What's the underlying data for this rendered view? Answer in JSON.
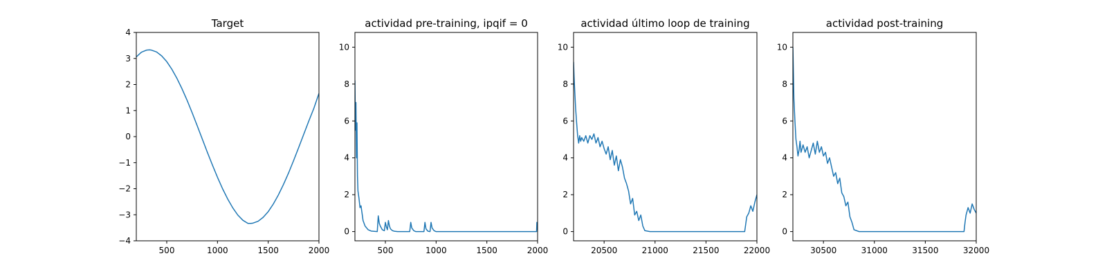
{
  "colors": {
    "line": "#1f77b4"
  },
  "chart_data": [
    {
      "type": "line",
      "title": "Target",
      "xlim": [
        200,
        2000
      ],
      "ylim": [
        -4,
        4
      ],
      "xticks": [
        500,
        1000,
        1500,
        2000
      ],
      "yticks": [
        -4,
        -3,
        -2,
        -1,
        0,
        1,
        2,
        3,
        4
      ],
      "xtick_labels": [
        "500",
        "1000",
        "1500",
        "2000"
      ],
      "ytick_labels": [
        "−4",
        "−3",
        "−2",
        "−1",
        "0",
        "1",
        "2",
        "3",
        "4"
      ],
      "series": [
        {
          "x": [
            200,
            250,
            300,
            330,
            350,
            400,
            450,
            500,
            550,
            600,
            650,
            700,
            750,
            800,
            850,
            900,
            950,
            1000,
            1050,
            1100,
            1150,
            1200,
            1250,
            1300,
            1330,
            1350,
            1400,
            1450,
            1500,
            1550,
            1600,
            1650,
            1700,
            1750,
            1800,
            1850,
            1900,
            1950,
            2000
          ],
          "y": [
            3.06,
            3.24,
            3.32,
            3.33,
            3.32,
            3.25,
            3.1,
            2.88,
            2.59,
            2.24,
            1.84,
            1.4,
            0.92,
            0.42,
            -0.09,
            -0.6,
            -1.09,
            -1.56,
            -2.0,
            -2.39,
            -2.73,
            -3.01,
            -3.21,
            -3.33,
            -3.33,
            -3.32,
            -3.25,
            -3.1,
            -2.88,
            -2.59,
            -2.24,
            -1.84,
            -1.4,
            -0.92,
            -0.42,
            0.09,
            0.6,
            1.09,
            1.66
          ]
        }
      ]
    },
    {
      "type": "line",
      "title": "actividad pre-training, ipqif = 0",
      "xlim": [
        200,
        2000
      ],
      "ylim": [
        -0.5,
        10.8
      ],
      "xticks": [
        500,
        1000,
        1500,
        2000
      ],
      "yticks": [
        0,
        2,
        4,
        6,
        8,
        10
      ],
      "xtick_labels": [
        "500",
        "1000",
        "1500",
        "2000"
      ],
      "ytick_labels": [
        "0",
        "2",
        "4",
        "6",
        "8",
        "10"
      ],
      "series": [
        {
          "x": [
            200,
            205,
            210,
            215,
            220,
            225,
            230,
            240,
            250,
            260,
            280,
            300,
            330,
            360,
            420,
            430,
            440,
            450,
            470,
            490,
            500,
            510,
            520,
            530,
            540,
            550,
            570,
            590,
            620,
            680,
            740,
            750,
            760,
            780,
            800,
            830,
            880,
            890,
            900,
            920,
            940,
            950,
            960,
            980,
            1000,
            1050,
            1500,
            1990,
            1993,
            1996,
            2000
          ],
          "y": [
            8.2,
            5.5,
            7.0,
            4.0,
            5.9,
            3.0,
            2.2,
            1.8,
            1.3,
            1.4,
            0.6,
            0.3,
            0.1,
            0.03,
            0.0,
            0.85,
            0.45,
            0.3,
            0.1,
            0.05,
            0.5,
            0.25,
            0.1,
            0.6,
            0.3,
            0.15,
            0.05,
            0.02,
            0.0,
            0.0,
            0.0,
            0.5,
            0.2,
            0.05,
            0.0,
            0.0,
            0.0,
            0.5,
            0.15,
            0.02,
            0.0,
            0.5,
            0.2,
            0.05,
            0.0,
            0.0,
            0.0,
            0.0,
            0.5,
            0.2,
            0.1
          ]
        }
      ]
    },
    {
      "type": "line",
      "title": "actividad último loop de training",
      "xlim": [
        20200,
        22000
      ],
      "ylim": [
        -0.5,
        10.8
      ],
      "xticks": [
        20500,
        21000,
        21500,
        22000
      ],
      "yticks": [
        0,
        2,
        4,
        6,
        8,
        10
      ],
      "xtick_labels": [
        "20500",
        "21000",
        "21500",
        "22000"
      ],
      "ytick_labels": [
        "0",
        "2",
        "4",
        "6",
        "8",
        "10"
      ],
      "series": [
        {
          "x": [
            20200,
            20205,
            20210,
            20220,
            20230,
            20240,
            20250,
            20260,
            20270,
            20280,
            20300,
            20320,
            20340,
            20360,
            20380,
            20400,
            20420,
            20440,
            20460,
            20480,
            20500,
            20520,
            20540,
            20560,
            20580,
            20600,
            20620,
            20640,
            20660,
            20680,
            20700,
            20720,
            20740,
            20760,
            20780,
            20800,
            20820,
            20840,
            20860,
            20880,
            20900,
            20950,
            21000,
            21500,
            21880,
            21890,
            21900,
            21920,
            21940,
            21960,
            21980,
            22000
          ],
          "y": [
            9.2,
            8.4,
            7.8,
            6.7,
            5.9,
            5.2,
            4.8,
            5.2,
            4.9,
            5.1,
            4.9,
            5.2,
            4.8,
            5.2,
            5.0,
            5.3,
            4.8,
            5.1,
            4.6,
            4.9,
            4.5,
            4.2,
            4.6,
            3.9,
            4.4,
            3.6,
            4.1,
            3.3,
            3.9,
            3.5,
            2.9,
            2.6,
            2.2,
            1.5,
            1.8,
            0.9,
            1.1,
            0.6,
            0.9,
            0.3,
            0.05,
            0.0,
            0.0,
            0.0,
            0.0,
            0.4,
            0.8,
            1.0,
            1.4,
            1.1,
            1.6,
            2.0
          ]
        }
      ]
    },
    {
      "type": "line",
      "title": "actividad post-training",
      "xlim": [
        30200,
        32000
      ],
      "ylim": [
        -0.5,
        10.8
      ],
      "xticks": [
        30500,
        31000,
        31500,
        32000
      ],
      "yticks": [
        0,
        2,
        4,
        6,
        8,
        10
      ],
      "xtick_labels": [
        "30500",
        "31000",
        "31500",
        "32000"
      ],
      "ytick_labels": [
        "0",
        "2",
        "4",
        "6",
        "8",
        "10"
      ],
      "series": [
        {
          "x": [
            30200,
            30205,
            30210,
            30220,
            30230,
            30240,
            30250,
            30260,
            30270,
            30280,
            30300,
            30320,
            30340,
            30360,
            30380,
            30400,
            30420,
            30440,
            30460,
            30480,
            30500,
            30520,
            30540,
            30560,
            30580,
            30600,
            30620,
            30640,
            30660,
            30680,
            30700,
            30720,
            30740,
            30760,
            30780,
            30800,
            30850,
            31000,
            31500,
            31880,
            31890,
            31900,
            31920,
            31940,
            31960,
            31980,
            32000
          ],
          "y": [
            10.0,
            8.6,
            7.2,
            6.0,
            5.0,
            4.6,
            4.1,
            4.4,
            4.9,
            4.3,
            4.7,
            4.3,
            4.6,
            4.0,
            4.4,
            4.8,
            4.2,
            4.9,
            4.3,
            4.6,
            4.1,
            4.3,
            3.7,
            4.0,
            3.5,
            3.0,
            3.2,
            2.6,
            2.9,
            2.1,
            1.9,
            1.4,
            1.6,
            0.8,
            0.5,
            0.1,
            0.0,
            0.0,
            0.0,
            0.0,
            0.5,
            0.9,
            1.3,
            1.0,
            1.5,
            1.2,
            1.0
          ]
        }
      ]
    }
  ]
}
